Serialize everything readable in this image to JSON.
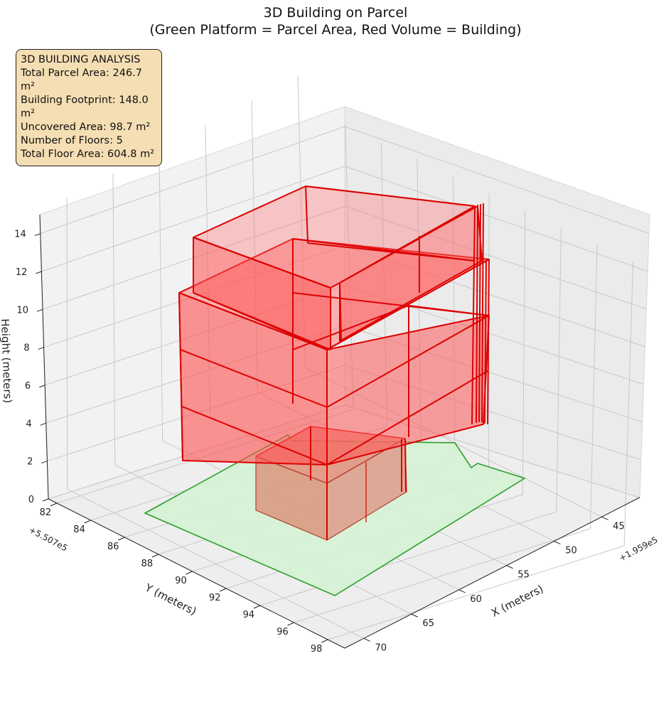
{
  "chart_data": {
    "type": "3d",
    "title": [
      "3D Building on Parcel",
      "(Green Platform = Parcel Area, Red Volume = Building)"
    ],
    "xlabel": "X (meters)",
    "ylabel": "Y (meters)",
    "zlabel": "Height (meters)",
    "x_offset": "+1.959e5",
    "y_offset": "+5.507e5",
    "x_ticks": [
      "45",
      "50",
      "55",
      "60",
      "65",
      "70"
    ],
    "y_ticks": [
      "82",
      "84",
      "86",
      "88",
      "90",
      "92",
      "94",
      "96",
      "98"
    ],
    "z_ticks": [
      "0",
      "2",
      "4",
      "6",
      "8",
      "10",
      "12",
      "14"
    ],
    "xlim": [
      41,
      72
    ],
    "ylim": [
      81.5,
      99
    ],
    "zlim": [
      0,
      15
    ],
    "grid": true,
    "colors": {
      "parcel_fill": "#d4f2d4",
      "parcel_edge": "#2ca02c",
      "building_fill": "#ff4d4d",
      "building_edge": "#dd0000",
      "panel": "#f2f2f2",
      "grid": "#c8c8c8"
    },
    "info_box": {
      "heading": "3D BUILDING ANALYSIS",
      "lines": [
        "Total Parcel Area: 246.7 m²",
        "Building Footprint: 148.0 m²",
        "Uncovered Area: 98.7 m²",
        "Number of Floors: 5",
        "Total Floor Area: 604.8 m²"
      ]
    },
    "series": [
      {
        "name": "Green Platform = Parcel Area",
        "role": "parcel"
      },
      {
        "name": "Red Volume = Building",
        "role": "building"
      }
    ]
  }
}
